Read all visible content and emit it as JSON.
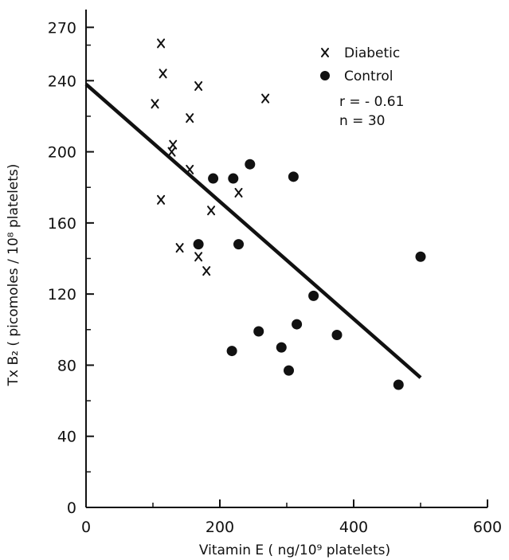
{
  "chart_data": {
    "type": "scatter",
    "xlabel": "Vitamin E ( ng/10⁹ platelets)",
    "ylabel": "Tx B₂ ( picomoles / 10⁸ platelets)",
    "xlim": [
      0,
      600
    ],
    "ylim": [
      0,
      280
    ],
    "x_ticks": [
      0,
      200,
      400,
      600
    ],
    "y_ticks": [
      0,
      40,
      80,
      120,
      160,
      200,
      240,
      270
    ],
    "x_tick_labels": [
      "0",
      "200",
      "400",
      "600"
    ],
    "y_tick_labels": [
      "0",
      "40",
      "80",
      "120",
      "160",
      "200",
      "240",
      "270"
    ],
    "grid": false,
    "legend_position": "top-right",
    "series": [
      {
        "name": "Diabetic",
        "marker": "x",
        "x": [
          112,
          103,
          115,
          155,
          130,
          168,
          128,
          155,
          112,
          228,
          187,
          140,
          168,
          180,
          268
        ],
        "y": [
          261,
          227,
          244,
          219,
          204,
          237,
          200,
          190,
          173,
          177,
          167,
          146,
          141,
          133,
          230
        ]
      },
      {
        "name": "Control",
        "marker": "circle",
        "x": [
          190,
          220,
          245,
          310,
          168,
          228,
          340,
          315,
          258,
          375,
          292,
          218,
          303,
          467,
          500
        ],
        "y": [
          185,
          185,
          193,
          186,
          148,
          148,
          119,
          103,
          99,
          97,
          90,
          88,
          77,
          69,
          141
        ]
      }
    ],
    "regression_line": {
      "x": [
        0,
        500
      ],
      "y": [
        238,
        73
      ]
    },
    "annotations": [
      "r = - 0.61",
      "n = 30"
    ]
  }
}
